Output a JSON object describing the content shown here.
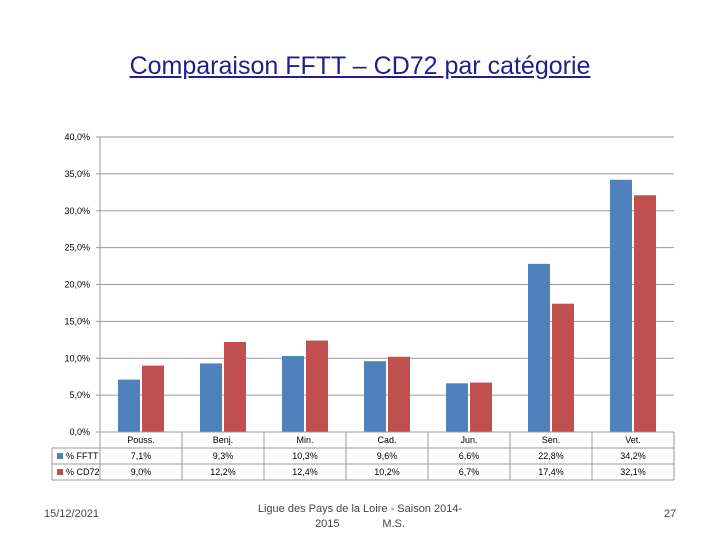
{
  "title": "Comparaison FFTT – CD72 par catégorie",
  "footer": {
    "date": "15/12/2021",
    "center_line1": "Ligue des Pays de la Loire - Saison 2014-",
    "center_line2": "2015              M.S.",
    "page_number": "27"
  },
  "colors": {
    "ffft": "#4f81bd",
    "cd72": "#c0504d"
  },
  "chart_data": {
    "type": "bar",
    "categories": [
      "Pouss.",
      "Benj.",
      "Min.",
      "Cad.",
      "Jun.",
      "Sen.",
      "Vet."
    ],
    "series": [
      {
        "name": "% FFTT",
        "values": [
          7.1,
          9.3,
          10.3,
          9.6,
          6.6,
          22.8,
          34.2
        ],
        "labels": [
          "7,1%",
          "9,3%",
          "10,3%",
          "9,6%",
          "6,6%",
          "22,8%",
          "34,2%"
        ]
      },
      {
        "name": "% CD72",
        "values": [
          9.0,
          12.2,
          12.4,
          10.2,
          6.7,
          17.4,
          32.1
        ],
        "labels": [
          "9,0%",
          "12,2%",
          "12,4%",
          "10,2%",
          "6,7%",
          "17,4%",
          "32,1%"
        ]
      }
    ],
    "ylim": [
      0,
      40
    ],
    "yticks": [
      "0,0%",
      "5,0%",
      "10,0%",
      "15,0%",
      "20,0%",
      "25,0%",
      "30,0%",
      "35,0%",
      "40,0%"
    ],
    "ytick_values": [
      0,
      5,
      10,
      15,
      20,
      25,
      30,
      35,
      40
    ],
    "grid": true,
    "legend": "data-table-left"
  }
}
